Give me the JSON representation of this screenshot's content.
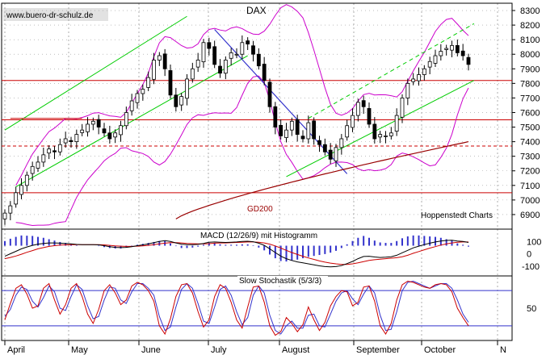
{
  "watermark": "www.buero-dr-schulz.de",
  "colors": {
    "price": "#000000",
    "bollinger": "#cc00cc",
    "trend_green": "#00cc00",
    "support_red": "#cc0000",
    "ma200": "#990000",
    "downtrend_blue": "#3333cc",
    "macd_line": "#000000",
    "macd_signal": "#cc0000",
    "macd_hist": "#3333cc",
    "stoch_k": "#cc0000",
    "stoch_d": "#3333cc",
    "grid": "#999999"
  },
  "chart_data": [
    {
      "type": "candlestick",
      "title": "DAX",
      "source_label": "Hoppenstedt Charts",
      "ylim": [
        6800,
        8350
      ],
      "yticks": [
        6900,
        7000,
        7100,
        7200,
        7300,
        7400,
        7500,
        7600,
        7700,
        7800,
        7900,
        8000,
        8100,
        8200,
        8300
      ],
      "months": [
        "April",
        "May",
        "June",
        "July",
        "August",
        "September",
        "October",
        "N"
      ],
      "grid": true,
      "annotations": [
        {
          "text": "GD200"
        }
      ],
      "horizontal_levels": [
        {
          "value": 7820,
          "style": "solid"
        },
        {
          "value": 7550,
          "style": "solid"
        },
        {
          "value": 7370,
          "style": "dashed"
        },
        {
          "value": 7050,
          "style": "solid"
        }
      ],
      "series": [
        {
          "name": "close",
          "values": [
            6910,
            6960,
            7050,
            7100,
            7170,
            7230,
            7260,
            7310,
            7350,
            7330,
            7380,
            7420,
            7400,
            7450,
            7480,
            7520,
            7540,
            7500,
            7460,
            7420,
            7460,
            7510,
            7600,
            7680,
            7730,
            7760,
            7840,
            7960,
            7990,
            7900,
            7720,
            7640,
            7710,
            7830,
            7900,
            7960,
            8080,
            8040,
            7930,
            7870,
            7960,
            8010,
            8000,
            8080,
            8070,
            8000,
            7920,
            7820,
            7640,
            7500,
            7440,
            7480,
            7540,
            7450,
            7420,
            7530,
            7420,
            7380,
            7330,
            7280,
            7360,
            7420,
            7510,
            7580,
            7670,
            7640,
            7520,
            7420,
            7450,
            7440,
            7460,
            7580,
            7700,
            7800,
            7830,
            7860,
            7900,
            7950,
            7990,
            8020,
            8040,
            8060,
            8010,
            7990,
            7930
          ]
        }
      ]
    },
    {
      "type": "line",
      "title": "MACD (12/26/9) mit Histogramm",
      "ylim": [
        -180,
        200
      ],
      "yticks": [
        100,
        0,
        -100
      ],
      "series": [
        {
          "name": "MACD",
          "values": [
            -20,
            0,
            20,
            40,
            55,
            68,
            78,
            84,
            88,
            88,
            86,
            84,
            80,
            76,
            74,
            74,
            74,
            72,
            66,
            58,
            52,
            50,
            52,
            58,
            66,
            72,
            80,
            90,
            100,
            106,
            100,
            88,
            78,
            74,
            74,
            76,
            84,
            94,
            96,
            94,
            92,
            94,
            96,
            100,
            102,
            98,
            86,
            68,
            40,
            10,
            -20,
            -40,
            -54,
            -66,
            -74,
            -82,
            -90,
            -98,
            -104,
            -106,
            -104,
            -96,
            -80,
            -62,
            -40,
            -22,
            -20,
            -26,
            -30,
            -28,
            -24,
            -12,
            8,
            28,
            48,
            62,
            74,
            86,
            96,
            104,
            108,
            110,
            104,
            100,
            92
          ]
        },
        {
          "name": "Signal",
          "values": [
            -40,
            -30,
            -18,
            -4,
            12,
            26,
            40,
            50,
            60,
            66,
            70,
            72,
            74,
            74,
            74,
            74,
            74,
            74,
            72,
            68,
            64,
            62,
            60,
            60,
            62,
            64,
            68,
            74,
            80,
            86,
            90,
            90,
            88,
            84,
            82,
            80,
            80,
            82,
            86,
            88,
            88,
            90,
            92,
            94,
            96,
            96,
            94,
            88,
            78,
            64,
            46,
            28,
            10,
            -6,
            -20,
            -34,
            -46,
            -58,
            -68,
            -76,
            -82,
            -86,
            -86,
            -82,
            -74,
            -64,
            -54,
            -48,
            -44,
            -40,
            -36,
            -32,
            -24,
            -12,
            4,
            18,
            32,
            46,
            58,
            70,
            80,
            88,
            94,
            96,
            96
          ]
        }
      ]
    },
    {
      "type": "line",
      "title": "Slow Stochastik (5/3/3)",
      "ylim": [
        -5,
        105
      ],
      "yticks": [
        50
      ],
      "reference_lines": [
        80,
        20
      ],
      "series": [
        {
          "name": "%K",
          "values": [
            30,
            58,
            84,
            90,
            74,
            50,
            54,
            84,
            92,
            64,
            40,
            56,
            84,
            92,
            70,
            40,
            24,
            48,
            80,
            90,
            76,
            56,
            64,
            88,
            94,
            90,
            80,
            62,
            20,
            6,
            32,
            70,
            90,
            92,
            76,
            44,
            18,
            30,
            70,
            90,
            84,
            60,
            30,
            16,
            52,
            86,
            88,
            60,
            20,
            4,
            10,
            34,
            24,
            10,
            22,
            52,
            30,
            12,
            26,
            54,
            70,
            80,
            78,
            54,
            60,
            86,
            88,
            62,
            20,
            6,
            24,
            64,
            90,
            96,
            94,
            90,
            86,
            84,
            90,
            92,
            90,
            78,
            50,
            34,
            20
          ]
        },
        {
          "name": "%D",
          "values": [
            36,
            48,
            72,
            86,
            82,
            62,
            52,
            68,
            88,
            78,
            50,
            46,
            70,
            90,
            82,
            54,
            32,
            36,
            64,
            86,
            84,
            64,
            58,
            78,
            92,
            92,
            84,
            72,
            36,
            12,
            18,
            52,
            82,
            92,
            84,
            58,
            28,
            24,
            52,
            82,
            88,
            72,
            44,
            22,
            34,
            72,
            88,
            76,
            38,
            12,
            6,
            20,
            28,
            16,
            16,
            38,
            40,
            20,
            18,
            40,
            62,
            76,
            80,
            66,
            56,
            74,
            88,
            76,
            38,
            12,
            14,
            44,
            80,
            94,
            96,
            92,
            88,
            84,
            88,
            92,
            92,
            84,
            64,
            40,
            26
          ]
        }
      ]
    }
  ]
}
